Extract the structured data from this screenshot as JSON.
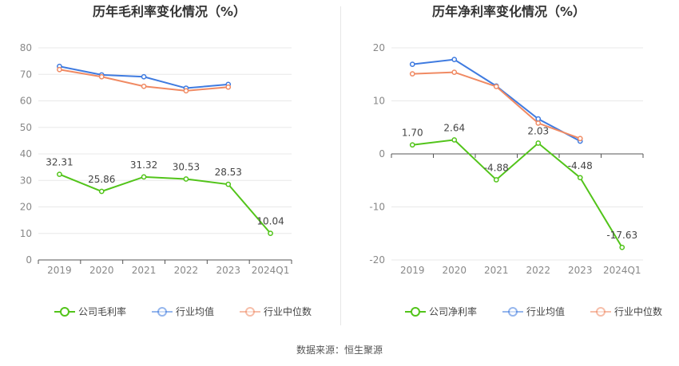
{
  "source": "数据来源：恒生聚源",
  "chart_data": [
    {
      "type": "line",
      "title": "历年毛利率变化情况（%）",
      "categories": [
        "2019",
        "2020",
        "2021",
        "2022",
        "2023",
        "2024Q1"
      ],
      "ylim": [
        0,
        80
      ],
      "yticks": [
        0,
        10,
        20,
        30,
        40,
        50,
        60,
        70,
        80
      ],
      "grid": true,
      "legend_position": "bottom",
      "series": [
        {
          "name": "公司毛利率",
          "color": "#52c41a",
          "values": [
            32.31,
            25.86,
            31.32,
            30.53,
            28.53,
            10.04
          ],
          "labels": [
            "32.31",
            "25.86",
            "31.32",
            "30.53",
            "28.53",
            "10.04"
          ]
        },
        {
          "name": "行业均值",
          "color": "#3f7be0",
          "values": [
            73.0,
            69.8,
            69.1,
            64.8,
            66.2,
            null
          ]
        },
        {
          "name": "行业中位数",
          "color": "#f08a63",
          "values": [
            71.8,
            69.1,
            65.5,
            63.8,
            65.2,
            null
          ]
        }
      ]
    },
    {
      "type": "line",
      "title": "历年净利率变化情况（%）",
      "categories": [
        "2019",
        "2020",
        "2021",
        "2022",
        "2023",
        "2024Q1"
      ],
      "ylim": [
        -20,
        20
      ],
      "yticks": [
        -20,
        -10,
        0,
        10,
        20
      ],
      "grid": true,
      "legend_position": "bottom",
      "series": [
        {
          "name": "公司净利率",
          "color": "#52c41a",
          "values": [
            1.7,
            2.64,
            -4.88,
            2.03,
            -4.48,
            -17.63
          ],
          "labels": [
            "1.70",
            "2.64",
            "-4.88",
            "2.03",
            "-4.48",
            "-17.63"
          ]
        },
        {
          "name": "行业均值",
          "color": "#3f7be0",
          "values": [
            16.9,
            17.8,
            12.8,
            6.6,
            2.4,
            null
          ]
        },
        {
          "name": "行业中位数",
          "color": "#f08a63",
          "values": [
            15.1,
            15.4,
            12.7,
            5.8,
            2.9,
            null
          ]
        }
      ]
    }
  ]
}
